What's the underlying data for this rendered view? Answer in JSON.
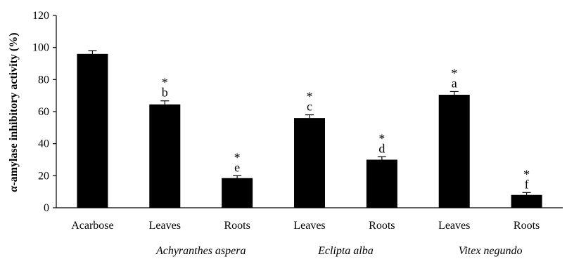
{
  "chart_data": {
    "type": "bar",
    "title": "",
    "xlabel": "",
    "ylabel": {
      "greek": "α",
      "rest": "-amylase inhibitory activity (%)"
    },
    "ylim": [
      0,
      120
    ],
    "yticks": [
      0,
      20,
      40,
      60,
      80,
      100,
      120
    ],
    "categories": [
      "Acarbose",
      "Leaves",
      "Roots",
      "Leaves",
      "Roots",
      "Leaves",
      "Roots"
    ],
    "values": [
      96,
      64.5,
      18.5,
      56,
      30,
      70.5,
      8
    ],
    "errors": [
      2,
      2.2,
      1.5,
      2,
      1.8,
      2,
      1.5
    ],
    "significance": [
      "",
      "*",
      "*",
      "*",
      "*",
      "*",
      "*"
    ],
    "letters": [
      "",
      "b",
      "e",
      "c",
      "d",
      "a",
      "f"
    ],
    "groups": [
      {
        "label": "Achyranthes aspera",
        "from": 1,
        "to": 2
      },
      {
        "label": "Eclipta alba",
        "from": 3,
        "to": 4
      },
      {
        "label": "Vitex negundo",
        "from": 5,
        "to": 6
      }
    ],
    "bar_color": "#000000",
    "grid": false,
    "legend": "none"
  }
}
